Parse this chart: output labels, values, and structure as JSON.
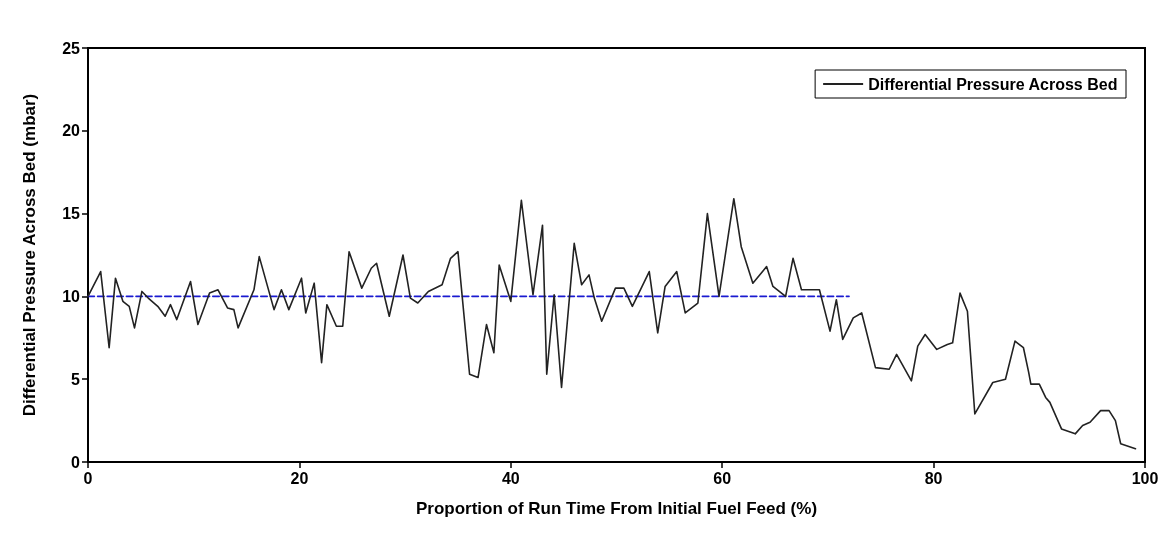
{
  "chart_data": {
    "type": "line",
    "xlabel": "Proportion of Run Time From Initial Fuel Feed (%)",
    "ylabel": "Differential Pressure Across Bed (mbar)",
    "xlim": [
      0,
      100
    ],
    "xticks": [
      0,
      20,
      40,
      60,
      80,
      100
    ],
    "ylim": [
      0,
      25
    ],
    "yticks": [
      0,
      5,
      10,
      15,
      20,
      25
    ],
    "grid": false,
    "legend": "top right",
    "marker": "none",
    "series": [
      {
        "name": "Differential Pressure Across Bed",
        "color": "#222222",
        "line_style": "solid",
        "x": [
          0,
          1.2,
          2.0,
          2.6,
          3.3,
          3.9,
          4.4,
          5.1,
          5.7,
          6.6,
          7.3,
          7.8,
          8.4,
          9.7,
          10.4,
          11.5,
          12.3,
          13.2,
          13.8,
          14.2,
          15.7,
          16.2,
          17.6,
          18.3,
          19.0,
          20.2,
          20.6,
          21.4,
          22.1,
          22.6,
          23.5,
          24.1,
          24.7,
          25.9,
          26.8,
          27.3,
          28.5,
          29.8,
          30.5,
          31.2,
          32.2,
          33.5,
          34.3,
          35.0,
          36.1,
          36.9,
          37.7,
          38.4,
          38.9,
          40.0,
          41.0,
          42.1,
          43.0,
          43.4,
          44.1,
          44.8,
          46.0,
          46.7,
          47.4,
          47.9,
          48.6,
          49.9,
          50.7,
          51.5,
          53.1,
          53.9,
          54.6,
          55.7,
          56.5,
          57.7,
          58.6,
          59.7,
          61.1,
          61.8,
          62.9,
          64.2,
          64.8,
          66.0,
          66.7,
          67.5,
          69.2,
          70.2,
          70.8,
          71.4,
          72.4,
          73.2,
          74.5,
          75.8,
          76.5,
          77.9,
          78.5,
          79.2,
          80.3,
          81.3,
          81.8,
          82.5,
          83.2,
          83.9,
          85.6,
          86.8,
          87.7,
          88.5,
          89.0,
          89.2,
          90.0,
          90.6,
          91.0,
          92.1,
          93.4,
          94.1,
          94.8,
          95.8,
          96.6,
          97.2,
          97.7,
          99.1
        ],
        "values": [
          10.0,
          11.5,
          6.9,
          11.1,
          9.7,
          9.4,
          8.1,
          10.3,
          9.9,
          9.4,
          8.8,
          9.5,
          8.6,
          10.9,
          8.3,
          10.2,
          10.4,
          9.3,
          9.2,
          8.1,
          10.4,
          12.4,
          9.2,
          10.4,
          9.2,
          11.1,
          9.0,
          10.8,
          6.0,
          9.5,
          8.2,
          8.2,
          12.7,
          10.5,
          11.7,
          12.0,
          8.8,
          12.5,
          9.9,
          9.6,
          10.3,
          10.7,
          12.3,
          12.7,
          5.3,
          5.1,
          8.3,
          6.6,
          11.9,
          9.7,
          15.8,
          10.1,
          14.3,
          5.3,
          10.1,
          4.5,
          13.2,
          10.7,
          11.3,
          9.9,
          8.5,
          10.5,
          10.5,
          9.4,
          11.5,
          7.8,
          10.6,
          11.5,
          9.0,
          9.6,
          15.0,
          10.0,
          15.9,
          13.0,
          10.8,
          11.8,
          10.6,
          10.0,
          12.3,
          10.4,
          10.4,
          7.9,
          9.8,
          7.4,
          8.7,
          9.0,
          5.7,
          5.6,
          6.5,
          4.9,
          7.0,
          7.7,
          6.8,
          7.1,
          7.2,
          10.2,
          9.1,
          2.9,
          4.8,
          5.0,
          7.3,
          6.9,
          5.4,
          4.7,
          4.7,
          3.9,
          3.6,
          2.0,
          1.7,
          2.2,
          2.4,
          3.1,
          3.1,
          2.5,
          1.1,
          0.8
        ]
      },
      {
        "color": "#1a1ad0",
        "line_style": "dashed",
        "x": [
          0,
          72
        ],
        "values": [
          10,
          10
        ]
      }
    ]
  }
}
